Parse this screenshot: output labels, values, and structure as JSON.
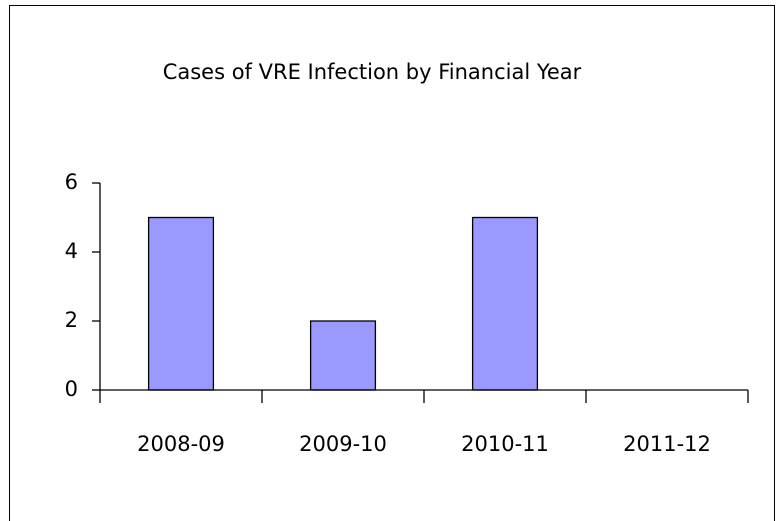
{
  "chart_data": {
    "type": "bar",
    "title": "Cases of VRE Infection by Financial Year",
    "categories": [
      "2008-09",
      "2009-10",
      "2010-11",
      "2011-12"
    ],
    "values": [
      5,
      2,
      5,
      0
    ],
    "color": "#9999ff",
    "ylim": [
      0,
      6
    ],
    "yticks": [
      0,
      2,
      4,
      6
    ]
  }
}
